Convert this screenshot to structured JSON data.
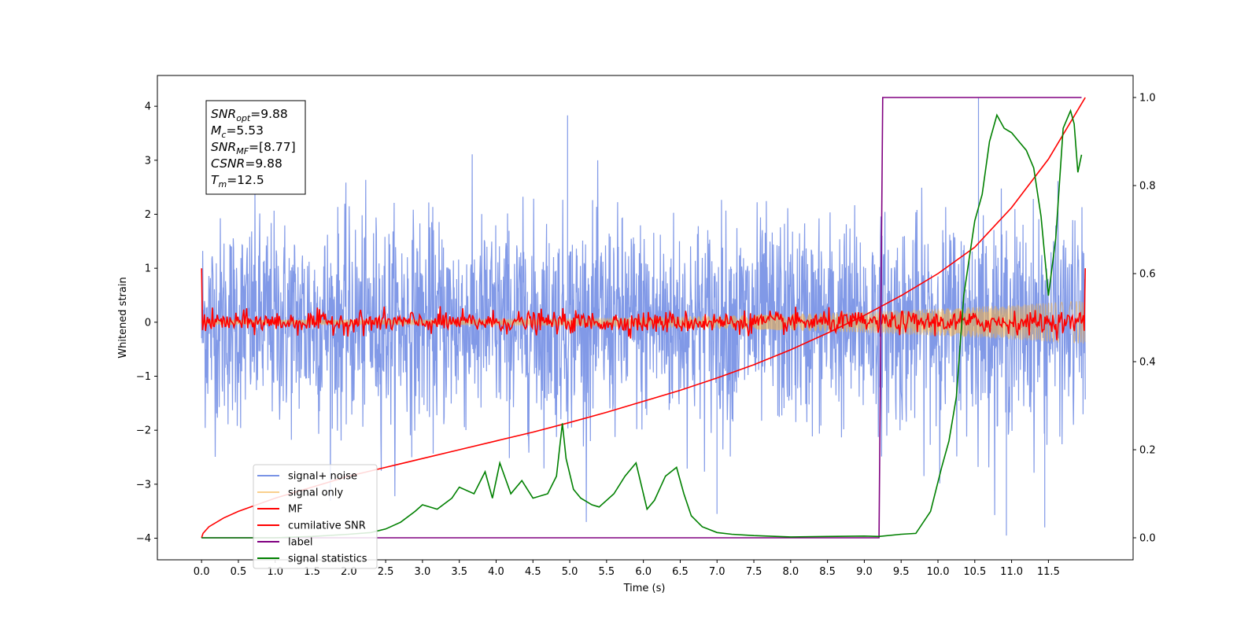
{
  "chart_data": {
    "type": "line",
    "title": "",
    "xlabel": "Time (s)",
    "ylabel": "Whitened strain",
    "y2label": "",
    "xlim": [
      -0.6,
      12.65
    ],
    "ylim": [
      -4.4,
      4.57
    ],
    "y2lim": [
      -0.05,
      1.05
    ],
    "xticks": [
      "0.0",
      "0.5",
      "1.0",
      "1.5",
      "2.0",
      "2.5",
      "3.0",
      "3.5",
      "4.0",
      "4.5",
      "5.0",
      "5.5",
      "6.0",
      "6.5",
      "7.0",
      "7.5",
      "8.0",
      "8.5",
      "9.0",
      "9.5",
      "10.0",
      "10.5",
      "11.0",
      "11.5"
    ],
    "yticks": [
      "−4",
      "−3",
      "−2",
      "−1",
      "0",
      "1",
      "2",
      "3",
      "4"
    ],
    "y2ticks": [
      "0.0",
      "0.2",
      "0.4",
      "0.6",
      "0.8",
      "1.0"
    ],
    "grid": false,
    "legend_position": "lower-left",
    "annotation": {
      "lines": [
        {
          "base": "SNR",
          "sub": "opt",
          "rest": "=9.88"
        },
        {
          "base": "M",
          "sub": "c",
          "rest": "=5.53"
        },
        {
          "base": "SNR",
          "sub": "MF",
          "rest": "=[8.77]"
        },
        {
          "base": "CSNR",
          "sub": "",
          "rest": "=9.88"
        },
        {
          "base": "T",
          "sub": "m",
          "rest": "=12.5"
        }
      ]
    },
    "series": [
      {
        "name": "signal+ noise",
        "axis": "left",
        "color": "#7a94e6",
        "style": "noise",
        "x_range": [
          0.0,
          12.0
        ],
        "envelope": [
          2.2,
          4.15
        ],
        "notes_peaks": [
          {
            "x": 4.97,
            "y": 3.83
          },
          {
            "x": 10.55,
            "y": 4.15
          },
          {
            "x": 10.93,
            "y": -3.95
          },
          {
            "x": 11.45,
            "y": -3.8
          },
          {
            "x": 7.0,
            "y": -3.55
          }
        ]
      },
      {
        "name": "signal only",
        "axis": "left",
        "color": "#f5b041",
        "style": "chirp",
        "x_range": [
          0.0,
          12.0
        ],
        "amplitude_start": 0.05,
        "amplitude_end": 0.4
      },
      {
        "name": "MF",
        "axis": "left",
        "color": "#ff0000",
        "style": "mf",
        "x_range": [
          0.0,
          12.0
        ],
        "start_value": 1.0,
        "end_value": 1.0,
        "noise_level": 0.1
      },
      {
        "name": "cumilative SNR",
        "axis": "right",
        "color": "#ff0000",
        "x": [
          0.0,
          0.02,
          0.1,
          0.3,
          0.5,
          1.0,
          1.5,
          2.0,
          2.5,
          3.0,
          3.5,
          4.0,
          4.5,
          5.0,
          5.5,
          6.0,
          6.5,
          7.0,
          7.5,
          8.0,
          8.5,
          9.0,
          9.5,
          10.0,
          10.5,
          11.0,
          11.5,
          12.0
        ],
        "y": [
          0.0,
          0.01,
          0.025,
          0.045,
          0.06,
          0.09,
          0.115,
          0.14,
          0.16,
          0.18,
          0.2,
          0.22,
          0.24,
          0.262,
          0.285,
          0.31,
          0.335,
          0.363,
          0.393,
          0.427,
          0.465,
          0.505,
          0.55,
          0.6,
          0.66,
          0.75,
          0.86,
          1.0
        ]
      },
      {
        "name": "label",
        "axis": "right",
        "color": "#800080",
        "x": [
          0.0,
          9.2,
          9.25,
          11.95
        ],
        "y": [
          0.0,
          0.0,
          1.0,
          1.0
        ]
      },
      {
        "name": "signal statistics",
        "axis": "right",
        "color": "#008000",
        "x": [
          0.0,
          0.5,
          1.0,
          1.5,
          2.0,
          2.3,
          2.5,
          2.7,
          2.9,
          3.0,
          3.2,
          3.4,
          3.5,
          3.7,
          3.85,
          3.95,
          4.05,
          4.2,
          4.35,
          4.5,
          4.7,
          4.82,
          4.9,
          4.95,
          5.05,
          5.15,
          5.3,
          5.4,
          5.6,
          5.75,
          5.9,
          6.05,
          6.15,
          6.3,
          6.45,
          6.55,
          6.65,
          6.8,
          7.0,
          7.2,
          7.5,
          8.0,
          8.5,
          9.0,
          9.2,
          9.5,
          9.7,
          9.9,
          10.05,
          10.15,
          10.25,
          10.35,
          10.5,
          10.6,
          10.7,
          10.8,
          10.9,
          11.0,
          11.1,
          11.2,
          11.3,
          11.4,
          11.5,
          11.6,
          11.7,
          11.8,
          11.85,
          11.9,
          11.95
        ],
        "y": [
          0.0,
          0.0,
          0.0,
          0.003,
          0.008,
          0.012,
          0.02,
          0.035,
          0.06,
          0.075,
          0.065,
          0.09,
          0.115,
          0.1,
          0.15,
          0.09,
          0.17,
          0.1,
          0.13,
          0.09,
          0.1,
          0.14,
          0.26,
          0.18,
          0.11,
          0.09,
          0.075,
          0.07,
          0.1,
          0.14,
          0.17,
          0.065,
          0.085,
          0.14,
          0.16,
          0.1,
          0.05,
          0.025,
          0.012,
          0.008,
          0.005,
          0.002,
          0.003,
          0.004,
          0.003,
          0.008,
          0.01,
          0.06,
          0.16,
          0.22,
          0.32,
          0.55,
          0.72,
          0.78,
          0.9,
          0.96,
          0.93,
          0.92,
          0.9,
          0.88,
          0.84,
          0.73,
          0.55,
          0.68,
          0.93,
          0.97,
          0.94,
          0.83,
          0.87
        ]
      }
    ]
  }
}
